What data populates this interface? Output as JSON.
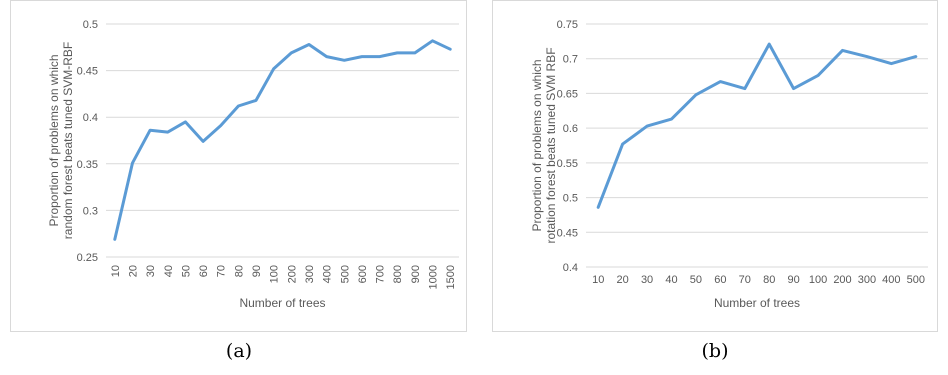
{
  "chart_data": [
    {
      "type": "line",
      "caption": "(a)",
      "xlabel": "Number of trees",
      "ylabel": [
        "Proportion of problems on which",
        "random forest beats tuned SVM-RBF"
      ],
      "ylim": [
        0.25,
        0.5
      ],
      "yticks": [
        "0.25",
        "0.3",
        "0.35",
        "0.4",
        "0.45",
        "0.5"
      ],
      "grid": true,
      "x_tick_rotation": "vertical",
      "categories": [
        "10",
        "20",
        "30",
        "40",
        "50",
        "60",
        "70",
        "80",
        "90",
        "100",
        "200",
        "300",
        "400",
        "500",
        "600",
        "700",
        "800",
        "900",
        "1000",
        "1500"
      ],
      "series": [
        {
          "color": "#5b9bd5",
          "values": [
            0.269,
            0.351,
            0.386,
            0.384,
            0.395,
            0.374,
            0.391,
            0.412,
            0.418,
            0.452,
            0.469,
            0.478,
            0.465,
            0.461,
            0.465,
            0.465,
            0.469,
            0.469,
            0.482,
            0.473
          ]
        }
      ]
    },
    {
      "type": "line",
      "caption": "(b)",
      "xlabel": "Number of trees",
      "ylabel": [
        "Proportion of problems on which",
        "rotation forest beats tuned SVM RBF"
      ],
      "ylim": [
        0.4,
        0.75
      ],
      "yticks": [
        "0.4",
        "0.45",
        "0.5",
        "0.55",
        "0.6",
        "0.65",
        "0.7",
        "0.75"
      ],
      "grid": true,
      "x_tick_rotation": "horizontal",
      "categories": [
        "10",
        "20",
        "30",
        "40",
        "50",
        "60",
        "70",
        "80",
        "90",
        "100",
        "200",
        "300",
        "400",
        "500"
      ],
      "series": [
        {
          "color": "#5b9bd5",
          "values": [
            0.486,
            0.577,
            0.603,
            0.613,
            0.648,
            0.667,
            0.657,
            0.721,
            0.657,
            0.676,
            0.712,
            0.703,
            0.693,
            0.703
          ]
        }
      ]
    }
  ]
}
